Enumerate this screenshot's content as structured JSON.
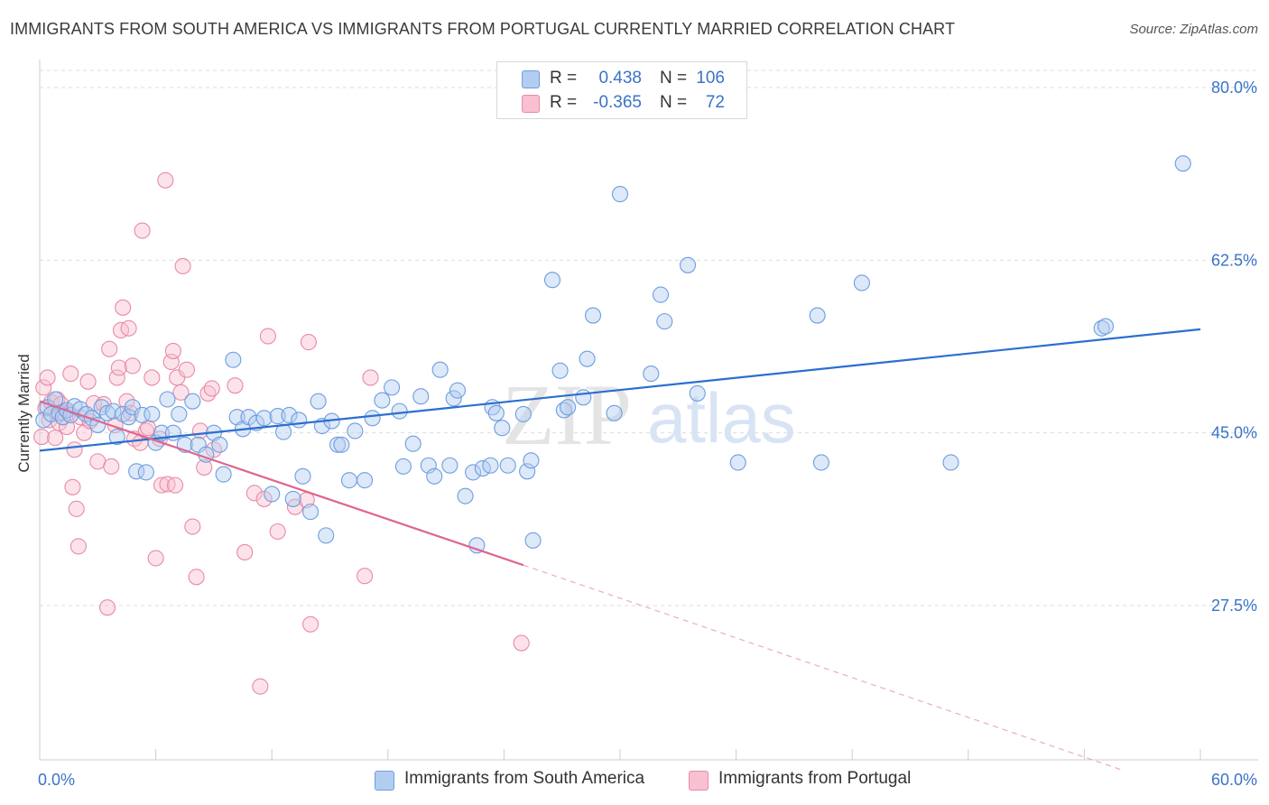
{
  "header": {
    "title": "IMMIGRANTS FROM SOUTH AMERICA VS IMMIGRANTS FROM PORTUGAL CURRENTLY MARRIED CORRELATION CHART",
    "source": "Source: ZipAtlas.com"
  },
  "watermark": {
    "zip": "ZIP",
    "atlas": "atlas"
  },
  "legend": {
    "rows": [
      {
        "r_label": "R =",
        "r_value": "0.438",
        "n_label": "N =",
        "n_value": "106"
      },
      {
        "r_label": "R =",
        "r_value": "-0.365",
        "n_label": "N =",
        "n_value": "72"
      }
    ]
  },
  "colors": {
    "blue_fill": "#b3cdf0",
    "blue_stroke": "#6d9ee0",
    "blue_line": "#2a6fd0",
    "pink_fill": "#f8c0d0",
    "pink_stroke": "#e88aa8",
    "pink_line": "#e0668e",
    "grid": "#dddddd",
    "tick_label": "#3a73c9"
  },
  "chart_data": {
    "type": "scatter",
    "title": "IMMIGRANTS FROM SOUTH AMERICA VS IMMIGRANTS FROM PORTUGAL CURRENTLY MARRIED CORRELATION CHART",
    "xlabel": "",
    "ylabel": "Currently Married",
    "xlim": [
      0,
      60
    ],
    "ylim": [
      10,
      82
    ],
    "x_tick_labels": [
      "0.0%",
      "60.0%"
    ],
    "y_ticks": [
      27.5,
      45.0,
      62.5,
      80.0
    ],
    "y_tick_labels": [
      "27.5%",
      "45.0%",
      "62.5%",
      "80.0%"
    ],
    "grid": true,
    "legend_position": "bottom",
    "series": [
      {
        "name": "Immigrants from South America",
        "color": "#6d9ee0",
        "r": 0.438,
        "n": 106,
        "trend": {
          "x": [
            0,
            60
          ],
          "y": [
            43.2,
            55.5
          ]
        },
        "points": [
          [
            0.2,
            46.3
          ],
          [
            0.4,
            47.6
          ],
          [
            0.6,
            46.9
          ],
          [
            0.8,
            48.4
          ],
          [
            1.0,
            47.0
          ],
          [
            1.2,
            46.6
          ],
          [
            1.4,
            47.3
          ],
          [
            1.6,
            46.8
          ],
          [
            1.8,
            47.7
          ],
          [
            2.1,
            47.4
          ],
          [
            2.4,
            46.9
          ],
          [
            2.7,
            46.5
          ],
          [
            3.0,
            45.8
          ],
          [
            3.2,
            47.6
          ],
          [
            3.5,
            47.0
          ],
          [
            3.8,
            47.2
          ],
          [
            4.0,
            44.6
          ],
          [
            4.3,
            46.9
          ],
          [
            4.6,
            46.6
          ],
          [
            4.8,
            47.6
          ],
          [
            5.0,
            41.1
          ],
          [
            5.3,
            46.8
          ],
          [
            5.5,
            41.0
          ],
          [
            5.8,
            46.9
          ],
          [
            6.0,
            44.0
          ],
          [
            6.3,
            45.0
          ],
          [
            6.6,
            48.4
          ],
          [
            6.9,
            45.0
          ],
          [
            7.2,
            46.9
          ],
          [
            7.5,
            43.8
          ],
          [
            7.9,
            48.2
          ],
          [
            8.2,
            43.8
          ],
          [
            8.6,
            42.8
          ],
          [
            9.0,
            45.0
          ],
          [
            9.3,
            43.8
          ],
          [
            9.5,
            40.8
          ],
          [
            10.0,
            52.4
          ],
          [
            10.2,
            46.6
          ],
          [
            10.5,
            45.4
          ],
          [
            10.8,
            46.6
          ],
          [
            11.2,
            46.0
          ],
          [
            11.6,
            46.5
          ],
          [
            12.0,
            38.8
          ],
          [
            12.3,
            46.7
          ],
          [
            12.6,
            45.1
          ],
          [
            12.9,
            46.8
          ],
          [
            13.1,
            38.3
          ],
          [
            13.4,
            46.3
          ],
          [
            13.6,
            40.6
          ],
          [
            14.0,
            37.0
          ],
          [
            14.4,
            48.2
          ],
          [
            14.6,
            45.7
          ],
          [
            14.8,
            34.6
          ],
          [
            15.1,
            46.2
          ],
          [
            15.4,
            43.8
          ],
          [
            15.6,
            43.8
          ],
          [
            16.0,
            40.2
          ],
          [
            16.3,
            45.2
          ],
          [
            16.8,
            40.2
          ],
          [
            17.2,
            46.5
          ],
          [
            17.7,
            48.3
          ],
          [
            18.2,
            49.6
          ],
          [
            18.6,
            47.2
          ],
          [
            18.8,
            41.6
          ],
          [
            19.3,
            43.9
          ],
          [
            19.7,
            48.7
          ],
          [
            20.1,
            41.7
          ],
          [
            20.4,
            40.6
          ],
          [
            20.7,
            51.4
          ],
          [
            21.2,
            41.7
          ],
          [
            21.4,
            48.5
          ],
          [
            21.6,
            49.3
          ],
          [
            22.0,
            38.6
          ],
          [
            22.4,
            41.0
          ],
          [
            22.6,
            33.6
          ],
          [
            22.9,
            41.4
          ],
          [
            23.3,
            41.7
          ],
          [
            23.4,
            47.6
          ],
          [
            23.6,
            47.0
          ],
          [
            23.9,
            45.5
          ],
          [
            24.2,
            41.7
          ],
          [
            25.0,
            46.9
          ],
          [
            25.2,
            41.1
          ],
          [
            25.4,
            42.2
          ],
          [
            25.5,
            34.1
          ],
          [
            26.5,
            60.5
          ],
          [
            26.9,
            51.3
          ],
          [
            27.1,
            47.3
          ],
          [
            27.3,
            47.6
          ],
          [
            28.1,
            48.6
          ],
          [
            28.3,
            52.5
          ],
          [
            28.6,
            56.9
          ],
          [
            29.7,
            47.0
          ],
          [
            30.0,
            69.2
          ],
          [
            31.6,
            51.0
          ],
          [
            32.1,
            59.0
          ],
          [
            32.3,
            56.3
          ],
          [
            33.5,
            62.0
          ],
          [
            34.0,
            49.0
          ],
          [
            36.1,
            42.0
          ],
          [
            40.2,
            56.9
          ],
          [
            40.4,
            42.0
          ],
          [
            42.5,
            60.2
          ],
          [
            47.1,
            42.0
          ],
          [
            54.9,
            55.6
          ],
          [
            55.1,
            55.8
          ],
          [
            59.1,
            72.3
          ]
        ]
      },
      {
        "name": "Immigrants from Portugal",
        "color": "#e88aa8",
        "r": -0.365,
        "n": 72,
        "trend": {
          "x": [
            0,
            25.0
          ],
          "y": [
            48.2,
            31.6
          ]
        },
        "trend_dashed": {
          "x": [
            25.0,
            56.0
          ],
          "y": [
            31.6,
            10.8
          ]
        },
        "points": [
          [
            0.1,
            44.6
          ],
          [
            0.2,
            49.6
          ],
          [
            0.3,
            47.5
          ],
          [
            0.4,
            50.6
          ],
          [
            0.5,
            46.3
          ],
          [
            0.6,
            48.1
          ],
          [
            0.8,
            44.5
          ],
          [
            0.9,
            48.4
          ],
          [
            1.0,
            46.0
          ],
          [
            1.1,
            47.9
          ],
          [
            1.2,
            47.1
          ],
          [
            1.4,
            45.6
          ],
          [
            1.5,
            47.0
          ],
          [
            1.6,
            51.0
          ],
          [
            1.7,
            39.5
          ],
          [
            1.8,
            43.3
          ],
          [
            1.9,
            37.3
          ],
          [
            2.0,
            33.5
          ],
          [
            2.1,
            46.6
          ],
          [
            2.3,
            45.0
          ],
          [
            2.5,
            50.2
          ],
          [
            2.6,
            46.2
          ],
          [
            2.8,
            48.0
          ],
          [
            3.0,
            42.1
          ],
          [
            3.3,
            47.9
          ],
          [
            3.5,
            27.3
          ],
          [
            3.6,
            53.5
          ],
          [
            3.7,
            41.6
          ],
          [
            3.9,
            45.8
          ],
          [
            4.0,
            50.6
          ],
          [
            4.1,
            51.6
          ],
          [
            4.2,
            55.4
          ],
          [
            4.3,
            57.7
          ],
          [
            4.5,
            48.2
          ],
          [
            4.6,
            55.6
          ],
          [
            4.7,
            47.0
          ],
          [
            4.8,
            51.8
          ],
          [
            4.9,
            44.4
          ],
          [
            5.2,
            44.0
          ],
          [
            5.3,
            65.5
          ],
          [
            5.5,
            45.2
          ],
          [
            5.6,
            45.5
          ],
          [
            5.8,
            50.6
          ],
          [
            6.0,
            32.3
          ],
          [
            6.2,
            44.4
          ],
          [
            6.3,
            39.7
          ],
          [
            6.5,
            70.6
          ],
          [
            6.6,
            39.8
          ],
          [
            6.8,
            52.2
          ],
          [
            6.9,
            53.3
          ],
          [
            7.0,
            39.7
          ],
          [
            7.1,
            50.6
          ],
          [
            7.3,
            49.1
          ],
          [
            7.4,
            61.9
          ],
          [
            7.6,
            51.4
          ],
          [
            7.9,
            35.5
          ],
          [
            8.1,
            30.4
          ],
          [
            8.3,
            45.2
          ],
          [
            8.5,
            41.5
          ],
          [
            8.7,
            49.0
          ],
          [
            8.9,
            49.5
          ],
          [
            9.0,
            43.3
          ],
          [
            10.1,
            49.8
          ],
          [
            10.6,
            32.9
          ],
          [
            11.1,
            38.9
          ],
          [
            11.4,
            19.3
          ],
          [
            11.6,
            38.3
          ],
          [
            11.8,
            54.8
          ],
          [
            12.3,
            35.0
          ],
          [
            13.2,
            37.5
          ],
          [
            13.8,
            38.2
          ],
          [
            13.9,
            54.2
          ],
          [
            14.0,
            25.6
          ],
          [
            16.8,
            30.5
          ],
          [
            17.1,
            50.6
          ],
          [
            24.9,
            23.7
          ]
        ]
      }
    ]
  }
}
